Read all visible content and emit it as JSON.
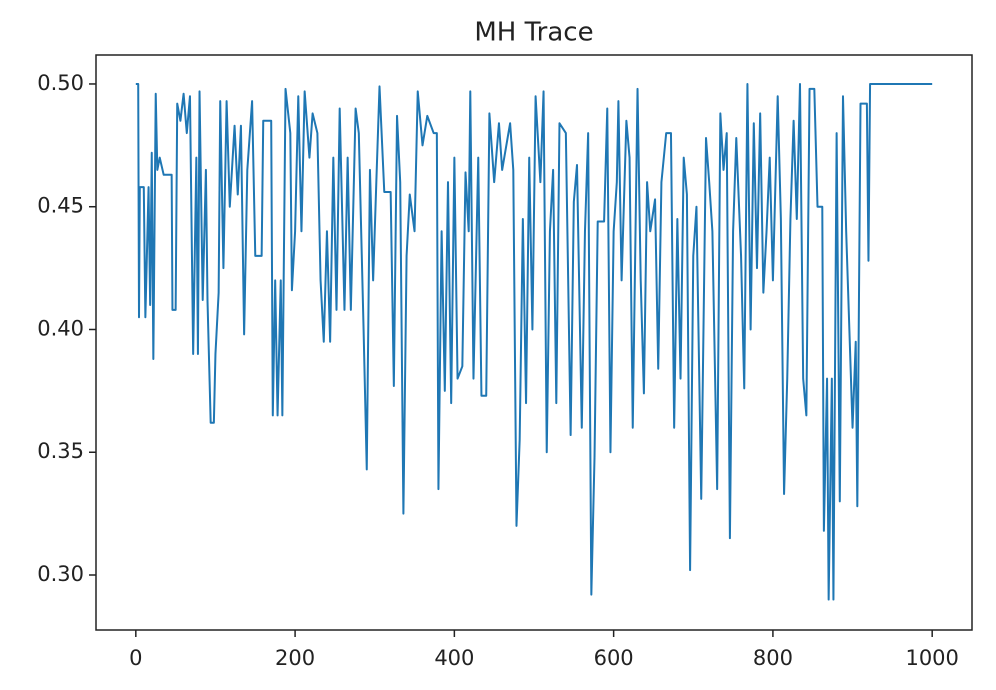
{
  "chart_data": {
    "type": "line",
    "title": "MH Trace",
    "x": [
      0,
      3,
      4,
      5,
      10,
      12,
      16,
      18,
      20,
      22,
      25,
      27,
      30,
      35,
      45,
      46,
      50,
      52,
      56,
      60,
      64,
      68,
      72,
      76,
      78,
      80,
      84,
      88,
      90,
      94,
      98,
      100,
      104,
      106,
      110,
      114,
      118,
      124,
      128,
      132,
      136,
      140,
      146,
      150,
      158,
      160,
      170,
      172,
      175,
      178,
      182,
      184,
      188,
      194,
      196,
      200,
      204,
      208,
      212,
      218,
      222,
      228,
      232,
      236,
      240,
      244,
      248,
      252,
      256,
      262,
      266,
      270,
      276,
      280,
      286,
      290,
      294,
      298,
      302,
      306,
      312,
      320,
      324,
      328,
      332,
      336,
      340,
      344,
      350,
      354,
      360,
      366,
      374,
      378,
      380,
      384,
      388,
      392,
      396,
      400,
      404,
      410,
      414,
      418,
      420,
      424,
      430,
      434,
      440,
      444,
      450,
      456,
      460,
      470,
      474,
      478,
      482,
      486,
      490,
      494,
      498,
      502,
      508,
      512,
      516,
      520,
      524,
      528,
      532,
      540,
      546,
      550,
      554,
      560,
      564,
      568,
      572,
      576,
      580,
      588,
      592,
      596,
      600,
      604,
      606,
      610,
      616,
      620,
      624,
      630,
      634,
      638,
      642,
      646,
      652,
      656,
      660,
      666,
      672,
      676,
      680,
      684,
      688,
      692,
      696,
      700,
      704,
      710,
      716,
      720,
      724,
      730,
      734,
      738,
      742,
      746,
      750,
      754,
      760,
      764,
      768,
      772,
      776,
      780,
      784,
      788,
      792,
      796,
      800,
      806,
      810,
      814,
      818,
      822,
      826,
      830,
      834,
      838,
      842,
      846,
      852,
      856,
      862,
      864,
      868,
      870,
      874,
      876,
      880,
      884,
      888,
      892,
      896,
      900,
      904,
      906,
      910,
      918,
      920,
      922,
      930,
      1000
    ],
    "series": [
      {
        "color": "#1f77b4",
        "values": [
          0.5,
          0.5,
          0.405,
          0.458,
          0.458,
          0.405,
          0.458,
          0.41,
          0.472,
          0.388,
          0.496,
          0.465,
          0.47,
          0.463,
          0.463,
          0.408,
          0.408,
          0.492,
          0.485,
          0.496,
          0.48,
          0.495,
          0.39,
          0.47,
          0.39,
          0.497,
          0.412,
          0.465,
          0.412,
          0.362,
          0.362,
          0.39,
          0.415,
          0.493,
          0.425,
          0.493,
          0.45,
          0.483,
          0.455,
          0.483,
          0.398,
          0.465,
          0.493,
          0.43,
          0.43,
          0.485,
          0.485,
          0.365,
          0.42,
          0.365,
          0.42,
          0.365,
          0.498,
          0.48,
          0.416,
          0.44,
          0.495,
          0.44,
          0.497,
          0.47,
          0.488,
          0.48,
          0.42,
          0.395,
          0.44,
          0.395,
          0.47,
          0.408,
          0.49,
          0.408,
          0.47,
          0.408,
          0.49,
          0.48,
          0.4,
          0.343,
          0.465,
          0.42,
          0.46,
          0.499,
          0.456,
          0.456,
          0.377,
          0.487,
          0.46,
          0.325,
          0.43,
          0.455,
          0.44,
          0.497,
          0.475,
          0.487,
          0.48,
          0.48,
          0.335,
          0.44,
          0.375,
          0.46,
          0.37,
          0.47,
          0.38,
          0.385,
          0.464,
          0.44,
          0.497,
          0.38,
          0.47,
          0.373,
          0.373,
          0.488,
          0.46,
          0.484,
          0.465,
          0.484,
          0.465,
          0.32,
          0.355,
          0.445,
          0.37,
          0.47,
          0.4,
          0.495,
          0.46,
          0.497,
          0.35,
          0.44,
          0.465,
          0.37,
          0.484,
          0.48,
          0.357,
          0.452,
          0.467,
          0.36,
          0.44,
          0.48,
          0.292,
          0.348,
          0.444,
          0.444,
          0.49,
          0.35,
          0.44,
          0.46,
          0.493,
          0.42,
          0.485,
          0.47,
          0.36,
          0.498,
          0.42,
          0.374,
          0.46,
          0.44,
          0.453,
          0.384,
          0.46,
          0.48,
          0.48,
          0.36,
          0.445,
          0.38,
          0.47,
          0.455,
          0.302,
          0.43,
          0.45,
          0.331,
          0.478,
          0.46,
          0.44,
          0.335,
          0.488,
          0.465,
          0.48,
          0.315,
          0.44,
          0.478,
          0.43,
          0.376,
          0.5,
          0.4,
          0.484,
          0.425,
          0.488,
          0.415,
          0.44,
          0.47,
          0.42,
          0.495,
          0.445,
          0.333,
          0.38,
          0.445,
          0.485,
          0.445,
          0.5,
          0.38,
          0.365,
          0.498,
          0.498,
          0.45,
          0.45,
          0.318,
          0.38,
          0.29,
          0.38,
          0.29,
          0.48,
          0.33,
          0.495,
          0.44,
          0.4,
          0.36,
          0.395,
          0.328,
          0.492,
          0.492,
          0.428,
          0.5,
          0.5,
          0.5
        ]
      }
    ],
    "xlim": [
      -50,
      1050
    ],
    "ylim": [
      0.2776,
      0.5118
    ],
    "xticks": [
      0,
      200,
      400,
      600,
      800,
      1000
    ],
    "yticks": [
      {
        "value": 0.3,
        "label": "0.30"
      },
      {
        "value": 0.35,
        "label": "0.35"
      },
      {
        "value": 0.4,
        "label": "0.40"
      },
      {
        "value": 0.45,
        "label": "0.45"
      },
      {
        "value": 0.5,
        "label": "0.50"
      }
    ]
  }
}
